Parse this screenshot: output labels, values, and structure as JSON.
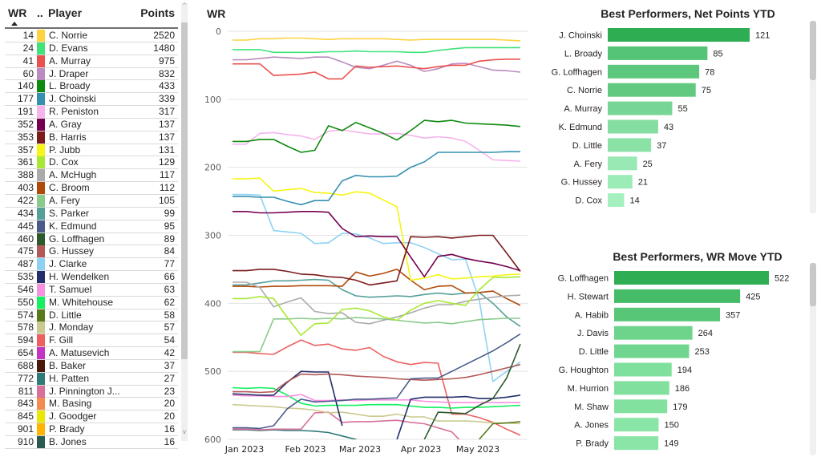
{
  "table": {
    "headers": {
      "wr": "WR",
      "dots": "..",
      "player": "Player",
      "points": "Points"
    },
    "sort_indicator": "ascending",
    "rows": [
      {
        "wr": "14",
        "color": "#FFD23F",
        "player": "C. Norrie",
        "points": "2520"
      },
      {
        "wr": "24",
        "color": "#3EE37A",
        "player": "D. Evans",
        "points": "1480"
      },
      {
        "wr": "41",
        "color": "#EB5050",
        "player": "A. Murray",
        "points": "975"
      },
      {
        "wr": "60",
        "color": "#BB8BC0",
        "player": "J. Draper",
        "points": "832"
      },
      {
        "wr": "140",
        "color": "#0E8A0E",
        "player": "L. Broady",
        "points": "433"
      },
      {
        "wr": "177",
        "color": "#3690B0",
        "player": "J. Choinski",
        "points": "339"
      },
      {
        "wr": "191",
        "color": "#F6B4EC",
        "player": "R. Peniston",
        "points": "317"
      },
      {
        "wr": "352",
        "color": "#750050",
        "player": "A. Gray",
        "points": "137"
      },
      {
        "wr": "353",
        "color": "#7A1C1C",
        "player": "B. Harris",
        "points": "137"
      },
      {
        "wr": "357",
        "color": "#F5F518",
        "player": "P. Jubb",
        "points": "131"
      },
      {
        "wr": "361",
        "color": "#A8E835",
        "player": "D. Cox",
        "points": "129"
      },
      {
        "wr": "388",
        "color": "#ABABAB",
        "player": "A. McHugh",
        "points": "117"
      },
      {
        "wr": "403",
        "color": "#B04A0A",
        "player": "C. Broom",
        "points": "112"
      },
      {
        "wr": "422",
        "color": "#8ACB8A",
        "player": "A. Fery",
        "points": "105"
      },
      {
        "wr": "434",
        "color": "#56A09A",
        "player": "S. Parker",
        "points": "99"
      },
      {
        "wr": "445",
        "color": "#4A5A8A",
        "player": "K. Edmund",
        "points": "95"
      },
      {
        "wr": "460",
        "color": "#2D5A2D",
        "player": "G. Loffhagen",
        "points": "89"
      },
      {
        "wr": "475",
        "color": "#B35858",
        "player": "G. Hussey",
        "points": "84"
      },
      {
        "wr": "487",
        "color": "#8ED2F2",
        "player": "J. Clarke",
        "points": "77"
      },
      {
        "wr": "535",
        "color": "#242E6A",
        "player": "H. Wendelken",
        "points": "66"
      },
      {
        "wr": "546",
        "color": "#F890E0",
        "player": "T. Samuel",
        "points": "63"
      },
      {
        "wr": "550",
        "color": "#15F060",
        "player": "M. Whitehouse",
        "points": "62"
      },
      {
        "wr": "574",
        "color": "#5A7A1A",
        "player": "D. Little",
        "points": "58"
      },
      {
        "wr": "578",
        "color": "#CACA90",
        "player": "J. Monday",
        "points": "57"
      },
      {
        "wr": "594",
        "color": "#EE6060",
        "player": "F. Gill",
        "points": "54"
      },
      {
        "wr": "654",
        "color": "#C534C5",
        "player": "A. Matusevich",
        "points": "42"
      },
      {
        "wr": "688",
        "color": "#4A1A0A",
        "player": "B. Baker",
        "points": "37"
      },
      {
        "wr": "772",
        "color": "#2E7A78",
        "player": "H. Patten",
        "points": "27"
      },
      {
        "wr": "811",
        "color": "#D8709A",
        "player": "J. Pinnington J...",
        "points": "23"
      },
      {
        "wr": "843",
        "color": "#F28C50",
        "player": "M. Basing",
        "points": "20"
      },
      {
        "wr": "845",
        "color": "#E8E800",
        "player": "J. Goodger",
        "points": "20"
      },
      {
        "wr": "901",
        "color": "#FFB400",
        "player": "P. Brady",
        "points": "16"
      },
      {
        "wr": "910",
        "color": "#2A5A50",
        "player": "B. Jones",
        "points": "16"
      }
    ],
    "scroll_up_glyph": "^",
    "scroll_down_glyph": "v"
  },
  "chart_data": [
    {
      "type": "line",
      "title": "WR",
      "xlabel": "",
      "ylabel": "WR",
      "y_inverted": true,
      "ylim": [
        0,
        600
      ],
      "yticks": [
        "0",
        "100",
        "200",
        "300",
        "400",
        "500",
        "600"
      ],
      "xticks": [
        "Jan 2023",
        "Feb 2023",
        "Mar 2023",
        "Apr 2023",
        "May 2023"
      ],
      "x_points": 22,
      "grid": true,
      "legend": "none",
      "series": [
        {
          "name": "C. Norrie",
          "color": "#FFD23F",
          "values": [
            13,
            13,
            11,
            11,
            10,
            10,
            11,
            12,
            11,
            11,
            11,
            11,
            12,
            13,
            12,
            12,
            12,
            12,
            12,
            12,
            13,
            14
          ]
        },
        {
          "name": "D. Evans",
          "color": "#3EE37A",
          "values": [
            27,
            27,
            27,
            31,
            31,
            31,
            31,
            30,
            30,
            29,
            30,
            30,
            30,
            31,
            31,
            28,
            26,
            24,
            24,
            24,
            24,
            24
          ]
        },
        {
          "name": "A. Murray",
          "color": "#EB5050",
          "values": [
            48,
            48,
            48,
            65,
            64,
            63,
            60,
            70,
            70,
            51,
            53,
            52,
            51,
            53,
            55,
            52,
            50,
            50,
            44,
            42,
            41,
            41
          ]
        },
        {
          "name": "J. Draper",
          "color": "#BB8BC0",
          "values": [
            42,
            42,
            40,
            38,
            39,
            40,
            38,
            38,
            45,
            53,
            55,
            50,
            44,
            50,
            59,
            55,
            48,
            47,
            52,
            57,
            58,
            60
          ]
        },
        {
          "name": "L. Broady",
          "color": "#0E8A0E",
          "values": [
            162,
            162,
            159,
            159,
            169,
            178,
            175,
            139,
            146,
            134,
            142,
            150,
            160,
            146,
            131,
            133,
            131,
            135,
            136,
            137,
            138,
            140
          ]
        },
        {
          "name": "J. Choinski",
          "color": "#3690B0",
          "values": [
            243,
            243,
            244,
            244,
            250,
            255,
            249,
            249,
            220,
            212,
            214,
            214,
            213,
            200,
            192,
            178,
            178,
            178,
            178,
            178,
            177,
            177
          ]
        },
        {
          "name": "R. Peniston",
          "color": "#F6B4EC",
          "values": [
            166,
            166,
            150,
            149,
            152,
            154,
            159,
            147,
            145,
            148,
            151,
            151,
            150,
            153,
            157,
            155,
            157,
            162,
            175,
            189,
            190,
            191
          ]
        },
        {
          "name": "A. Gray",
          "color": "#750050",
          "values": [
            265,
            265,
            267,
            267,
            266,
            265,
            265,
            266,
            290,
            302,
            301,
            302,
            302,
            332,
            361,
            331,
            328,
            334,
            338,
            341,
            346,
            352
          ]
        },
        {
          "name": "B. Harris",
          "color": "#7A1C1C",
          "values": [
            352,
            352,
            350,
            350,
            353,
            357,
            358,
            361,
            362,
            366,
            373,
            370,
            367,
            302,
            303,
            302,
            304,
            302,
            300,
            300,
            326,
            353
          ]
        },
        {
          "name": "P. Jubb",
          "color": "#F5F518",
          "values": [
            217,
            217,
            216,
            235,
            233,
            231,
            237,
            238,
            241,
            236,
            238,
            248,
            258,
            366,
            363,
            358,
            364,
            363,
            361,
            360,
            358,
            357
          ]
        },
        {
          "name": "D. Cox",
          "color": "#A8E835",
          "values": [
            393,
            393,
            390,
            393,
            421,
            447,
            430,
            429,
            409,
            407,
            411,
            420,
            425,
            410,
            400,
            396,
            400,
            403,
            380,
            362,
            362,
            361
          ]
        },
        {
          "name": "A. McHugh",
          "color": "#ABABAB",
          "values": [
            369,
            369,
            377,
            405,
            398,
            392,
            412,
            415,
            414,
            428,
            430,
            425,
            420,
            414,
            407,
            402,
            402,
            397,
            394,
            391,
            389,
            388
          ]
        },
        {
          "name": "C. Broom",
          "color": "#B04A0A",
          "values": [
            375,
            375,
            376,
            375,
            375,
            374,
            374,
            374,
            375,
            354,
            360,
            356,
            350,
            366,
            380,
            375,
            374,
            385,
            384,
            382,
            393,
            403
          ]
        },
        {
          "name": "A. Fery",
          "color": "#8ACB8A",
          "values": [
            471,
            471,
            471,
            423,
            423,
            422,
            423,
            422,
            423,
            421,
            422,
            423,
            425,
            427,
            429,
            428,
            430,
            427,
            424,
            423,
            422,
            422
          ]
        },
        {
          "name": "S. Parker",
          "color": "#56A09A",
          "values": [
            373,
            373,
            370,
            367,
            367,
            366,
            365,
            366,
            380,
            389,
            391,
            390,
            389,
            390,
            387,
            385,
            387,
            385,
            384,
            400,
            420,
            434
          ]
        },
        {
          "name": "K. Edmund",
          "color": "#4A5A8A",
          "values": [
            583,
            583,
            584,
            580,
            555,
            541,
            545,
            544,
            543,
            541,
            541,
            540,
            539,
            511,
            510,
            510,
            500,
            490,
            480,
            470,
            458,
            445
          ]
        },
        {
          "name": "G. Loffhagen",
          "color": "#2D5A2D",
          "values": [
            null,
            null,
            null,
            null,
            null,
            null,
            null,
            null,
            null,
            null,
            null,
            null,
            null,
            null,
            600,
            560,
            561,
            562,
            550,
            540,
            510,
            460
          ]
        },
        {
          "name": "G. Hussey",
          "color": "#B35858",
          "values": [
            530,
            530,
            531,
            530,
            515,
            504,
            505,
            504,
            505,
            507,
            508,
            509,
            511,
            512,
            513,
            512,
            511,
            509,
            505,
            500,
            495,
            490
          ]
        },
        {
          "name": "J. Clarke",
          "color": "#8ED2F2",
          "values": [
            240,
            240,
            241,
            293,
            295,
            297,
            312,
            311,
            297,
            298,
            304,
            312,
            311,
            311,
            318,
            327,
            336,
            335,
            395,
            515,
            500,
            486
          ]
        },
        {
          "name": "H. Wendelken",
          "color": "#242E6A",
          "values": [
            533,
            534,
            535,
            535,
            516,
            500,
            501,
            501,
            580,
            null,
            null,
            null,
            600,
            541,
            538,
            538,
            538,
            537,
            540,
            540,
            538,
            535
          ]
        },
        {
          "name": "T. Samuel",
          "color": "#F890E0",
          "values": [
            535,
            536,
            536,
            537,
            537,
            534,
            543,
            543,
            542,
            543,
            542,
            542,
            542,
            542,
            544,
            545,
            546,
            546,
            546,
            546,
            546,
            546
          ]
        },
        {
          "name": "M. Whitehouse",
          "color": "#15F060",
          "values": [
            524,
            525,
            524,
            525,
            535,
            547,
            551,
            550,
            550,
            550,
            549,
            549,
            549,
            551,
            553,
            553,
            554,
            553,
            553,
            552,
            551,
            550
          ]
        },
        {
          "name": "D. Little",
          "color": "#5A7A1A",
          "values": [
            null,
            null,
            null,
            null,
            null,
            null,
            null,
            null,
            null,
            null,
            null,
            null,
            null,
            null,
            null,
            null,
            null,
            null,
            600,
            577,
            576,
            574
          ]
        },
        {
          "name": "J. Monday",
          "color": "#CACA90",
          "values": [
            549,
            550,
            551,
            552,
            554,
            555,
            557,
            561,
            560,
            563,
            566,
            566,
            563,
            567,
            567,
            573,
            573,
            573,
            574,
            576,
            576,
            577
          ]
        },
        {
          "name": "F. Gill",
          "color": "#EE6060",
          "values": [
            472,
            472,
            474,
            475,
            464,
            454,
            462,
            460,
            467,
            469,
            465,
            478,
            486,
            490,
            487,
            488,
            563,
            563,
            568,
            575,
            585,
            594
          ]
        },
        {
          "name": "J. Pinnington J.",
          "color": "#D8709A",
          "values": [
            585,
            585,
            586,
            585,
            585,
            585,
            561,
            560,
            575,
            574,
            574,
            573,
            572,
            575,
            577,
            583,
            589,
            610,
            null,
            null,
            null,
            null
          ]
        },
        {
          "name": "H. Patten",
          "color": "#2E7A78",
          "values": [
            586,
            586,
            587,
            586,
            587,
            587,
            588,
            590,
            595,
            600,
            610,
            null,
            null,
            null,
            null,
            null,
            null,
            null,
            null,
            null,
            null,
            null
          ]
        }
      ]
    },
    {
      "type": "bar",
      "orientation": "horizontal",
      "title": "Best Performers, Net Points YTD",
      "categories": [
        "J. Choinski",
        "L. Broady",
        "G. Loffhagen",
        "C. Norrie",
        "A. Murray",
        "K. Edmund",
        "D. Little",
        "A. Fery",
        "G. Hussey",
        "D. Cox"
      ],
      "values": [
        121,
        85,
        78,
        75,
        55,
        43,
        37,
        25,
        21,
        14
      ],
      "color_max": "#2EAD52",
      "color_min": "#A4F0BE",
      "xlim": [
        0,
        121
      ]
    },
    {
      "type": "bar",
      "orientation": "horizontal",
      "title": "Best Performers, WR Move YTD",
      "categories": [
        "G. Loffhagen",
        "H. Stewart",
        "A. Habib",
        "J. Davis",
        "D. Little",
        "G. Houghton",
        "M. Hurrion",
        "M. Shaw",
        "A. Jones",
        "P. Brady"
      ],
      "values": [
        522,
        425,
        357,
        264,
        253,
        194,
        186,
        179,
        150,
        149
      ],
      "color_max": "#2EAD52",
      "color_min": "#8AE6A6",
      "xlim": [
        0,
        522
      ]
    }
  ]
}
